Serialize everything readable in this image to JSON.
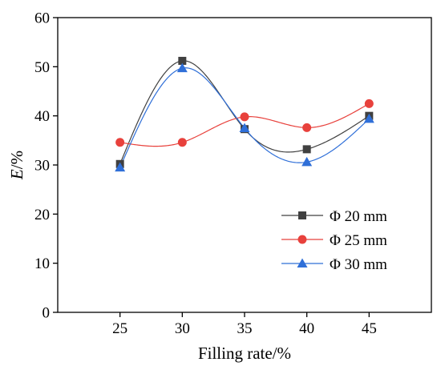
{
  "chart_data": {
    "type": "line",
    "xlabel": "Filling rate/%",
    "ylabel_italic": "E",
    "ylabel_suffix": "/%",
    "x": [
      25,
      30,
      35,
      40,
      45
    ],
    "xlim": [
      20,
      50
    ],
    "ylim": [
      0,
      60
    ],
    "xticks": [
      25,
      30,
      35,
      40,
      45
    ],
    "yticks": [
      0,
      10,
      20,
      30,
      40,
      50,
      60
    ],
    "grid": false,
    "legend_position": "right",
    "series": [
      {
        "name": "Φ 20 mm",
        "marker": "square",
        "color": "#404040",
        "values": [
          30.2,
          51.2,
          37.3,
          33.2,
          40.0
        ]
      },
      {
        "name": "Φ 25 mm",
        "marker": "circle",
        "color": "#e8413c",
        "values": [
          34.6,
          34.6,
          39.8,
          37.6,
          42.5
        ]
      },
      {
        "name": "Φ 30 mm",
        "marker": "triangle",
        "color": "#2f6fd8",
        "values": [
          29.5,
          49.7,
          37.5,
          30.6,
          39.4
        ]
      }
    ]
  }
}
